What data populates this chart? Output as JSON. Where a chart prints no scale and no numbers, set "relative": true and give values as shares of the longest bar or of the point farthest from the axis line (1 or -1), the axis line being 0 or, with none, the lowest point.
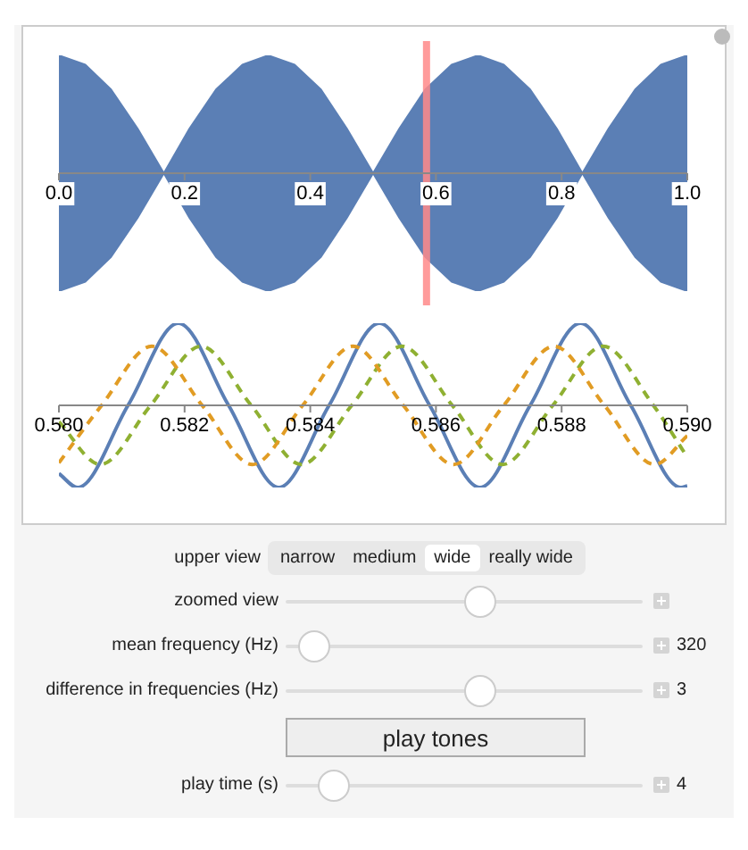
{
  "chart_data": [
    {
      "type": "area",
      "relative": true,
      "xlim": [
        0,
        1
      ],
      "xticks": [
        {
          "value": 0,
          "label": "0.0"
        },
        {
          "value": 0.2,
          "label": "0.2"
        },
        {
          "value": 0.4,
          "label": "0.4"
        },
        {
          "value": 0.6,
          "label": "0.6"
        },
        {
          "value": 0.8,
          "label": "0.8"
        },
        {
          "value": 1,
          "label": "1.0"
        }
      ],
      "x": [
        0,
        0.042,
        0.083,
        0.125,
        0.167,
        0.208,
        0.25,
        0.292,
        0.333,
        0.375,
        0.417,
        0.458,
        0.5,
        0.542,
        0.583,
        0.625,
        0.667,
        0.708,
        0.75,
        0.792,
        0.833,
        0.875,
        0.917,
        0.958,
        1.0
      ],
      "series": [
        {
          "color": "#5b7fb5",
          "values": [
            1,
            0.92,
            0.71,
            0.38,
            0,
            0.38,
            0.71,
            0.92,
            1,
            0.92,
            0.71,
            0.38,
            0,
            0.38,
            0.71,
            0.92,
            1,
            0.92,
            0.71,
            0.38,
            0,
            0.38,
            0.71,
            0.92,
            1
          ]
        },
        {
          "color": "#5b7fb5",
          "values": [
            -1,
            -0.92,
            -0.71,
            -0.38,
            0,
            -0.38,
            -0.71,
            -0.92,
            -1,
            -0.92,
            -0.71,
            -0.38,
            0,
            -0.38,
            -0.71,
            -0.92,
            -1,
            -0.92,
            -0.71,
            -0.38,
            0,
            -0.38,
            -0.71,
            -0.92,
            -1
          ]
        }
      ],
      "ref_lines": [
        {
          "axis": "x",
          "value": 0.585,
          "color": "#ff8a8a"
        }
      ]
    },
    {
      "type": "line",
      "relative": true,
      "xlim": [
        0.58,
        0.59
      ],
      "xticks": [
        {
          "value": 0.58,
          "label": "0.580"
        },
        {
          "value": 0.582,
          "label": "0.582"
        },
        {
          "value": 0.584,
          "label": "0.584"
        },
        {
          "value": 0.586,
          "label": "0.586"
        },
        {
          "value": 0.588,
          "label": "0.588"
        },
        {
          "value": 0.59,
          "label": "0.590"
        }
      ],
      "series": [
        {
          "color": "#e19c24",
          "line_style": "dashed",
          "x": [
            0.58,
            0.58068,
            0.58148,
            0.58228,
            0.58308,
            0.58388,
            0.58468,
            0.58548,
            0.58628,
            0.58708,
            0.58788,
            0.58868,
            0.58948,
            0.59
          ],
          "values": [
            -0.7,
            0,
            0.72,
            0,
            -0.72,
            0,
            0.72,
            0,
            -0.72,
            0,
            0.72,
            0,
            -0.72,
            -0.37
          ]
        },
        {
          "color": "#8fb032",
          "line_style": "dashed",
          "x": [
            0.58,
            0.58066,
            0.58146,
            0.58226,
            0.58306,
            0.58386,
            0.58466,
            0.58546,
            0.58626,
            0.58706,
            0.58786,
            0.58866,
            0.58946,
            0.59
          ],
          "values": [
            -0.2,
            -0.72,
            0,
            0.72,
            0,
            -0.72,
            0,
            0.72,
            0,
            -0.72,
            0,
            0.72,
            0,
            -0.63
          ]
        },
        {
          "color": "#5b7fb5",
          "line_style": "solid",
          "x": [
            0.58,
            0.5803,
            0.5811,
            0.5819,
            0.5827,
            0.5835,
            0.5843,
            0.5851,
            0.5859,
            0.5867,
            0.5875,
            0.5883,
            0.5891,
            0.5899,
            0.59
          ],
          "values": [
            -0.83,
            -1,
            0,
            1,
            0,
            -1,
            0,
            1,
            0,
            -1,
            0,
            1,
            0,
            -1,
            -0.98
          ]
        }
      ]
    },
    {
      "type": "other",
      "annotations": [
        "upper view",
        "narrow",
        "medium",
        "wide",
        "really wide",
        "zoomed view",
        "mean frequency (Hz)",
        "320",
        "difference in frequencies (Hz)",
        "3",
        "play tones",
        "play time (s)",
        "4"
      ]
    }
  ]
}
